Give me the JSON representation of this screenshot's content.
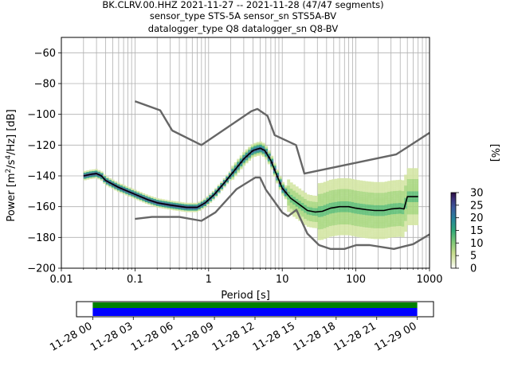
{
  "header": {
    "line1": "BK.CLRV.00.HHZ   2021-11-27 -- 2021-11-28  (47/47 segments)",
    "line2": "sensor_type STS-5A sensor_sn STS5A-BV",
    "line3": "datalogger_type Q8 datalogger_sn Q8-BV"
  },
  "chart_data": [
    {
      "type": "heatmap",
      "xlabel": "Period [s]",
      "ylabel": "Power [m²/s⁴/Hz] [dB]",
      "x_scale": "log",
      "xlim": [
        0.01,
        1000
      ],
      "ylim": [
        -200,
        -50
      ],
      "x_ticks": [
        "0.01",
        "0.1",
        "1",
        "10",
        "100",
        "1000"
      ],
      "x_tick_values": [
        0.01,
        0.1,
        1,
        10,
        100,
        1000
      ],
      "y_ticks": [
        -200,
        -180,
        -160,
        -140,
        -120,
        -100,
        -80,
        -60
      ],
      "grid": true,
      "colorbar": {
        "label": "[%]",
        "range": [
          0,
          30
        ],
        "ticks": [
          0,
          5,
          10,
          15,
          20,
          25,
          30
        ],
        "colormap": "pqlx"
      },
      "series": [
        {
          "name": "NHNM",
          "color": "#666666",
          "points": [
            [
              0.1,
              -91.5
            ],
            [
              0.22,
              -97.4
            ],
            [
              0.32,
              -110.5
            ],
            [
              0.8,
              -120
            ],
            [
              3.8,
              -98
            ],
            [
              4.6,
              -96.5
            ],
            [
              6.3,
              -101
            ],
            [
              7.9,
              -113.5
            ],
            [
              15.4,
              -120
            ],
            [
              20,
              -138.5
            ],
            [
              354.8,
              -126
            ],
            [
              1000,
              -112
            ]
          ]
        },
        {
          "name": "NLNM",
          "color": "#666666",
          "points": [
            [
              0.1,
              -168
            ],
            [
              0.17,
              -166.7
            ],
            [
              0.4,
              -166.7
            ],
            [
              0.8,
              -169.2
            ],
            [
              1.24,
              -163.7
            ],
            [
              2.4,
              -148.6
            ],
            [
              4.3,
              -141.1
            ],
            [
              5,
              -141.1
            ],
            [
              6,
              -149
            ],
            [
              10,
              -163.8
            ],
            [
              12,
              -166.2
            ],
            [
              15.6,
              -162.1
            ],
            [
              21.9,
              -177.5
            ],
            [
              31.6,
              -185
            ],
            [
              45,
              -187.5
            ],
            [
              70,
              -187.5
            ],
            [
              101,
              -185
            ],
            [
              154,
              -185
            ],
            [
              328,
              -187.5
            ],
            [
              600,
              -184.4
            ],
            [
              1000,
              -178
            ]
          ]
        },
        {
          "name": "mean",
          "color": "#000000",
          "points": [
            [
              0.02,
              -140
            ],
            [
              0.025,
              -139
            ],
            [
              0.03,
              -138.5
            ],
            [
              0.035,
              -140
            ],
            [
              0.04,
              -143
            ],
            [
              0.06,
              -147.5
            ],
            [
              0.1,
              -152
            ],
            [
              0.15,
              -155.5
            ],
            [
              0.2,
              -157.5
            ],
            [
              0.3,
              -159
            ],
            [
              0.5,
              -160.5
            ],
            [
              0.7,
              -160.5
            ],
            [
              0.9,
              -157.5
            ],
            [
              1.2,
              -152
            ],
            [
              1.6,
              -145
            ],
            [
              2.2,
              -137
            ],
            [
              3,
              -129
            ],
            [
              4,
              -123.5
            ],
            [
              5,
              -122
            ],
            [
              5.8,
              -123.5
            ],
            [
              7,
              -130
            ],
            [
              8.5,
              -140
            ],
            [
              10,
              -148
            ],
            [
              13,
              -154.5
            ],
            [
              17,
              -158.5
            ],
            [
              22,
              -162.5
            ],
            [
              28,
              -163.5
            ],
            [
              35,
              -163
            ],
            [
              45,
              -161
            ],
            [
              60,
              -160
            ],
            [
              80,
              -160
            ],
            [
              100,
              -161
            ],
            [
              140,
              -162
            ],
            [
              180,
              -162.5
            ],
            [
              240,
              -162.5
            ],
            [
              300,
              -161.5
            ],
            [
              400,
              -161
            ],
            [
              450,
              -161.5
            ],
            [
              500,
              -153.5
            ],
            [
              700,
              -153.5
            ]
          ]
        }
      ]
    },
    {
      "type": "timeline",
      "x_ticks": [
        "11-28 00",
        "11-28 03",
        "11-28 06",
        "11-28 09",
        "11-28 12",
        "11-28 15",
        "11-28 18",
        "11-28 21",
        "11-29 00"
      ],
      "x_tick_hours": [
        0,
        3,
        6,
        9,
        12,
        15,
        18,
        21,
        24
      ],
      "xlim_hours": [
        -1.2,
        25.2
      ],
      "data_coverage_hours": [
        0,
        24
      ],
      "bars": [
        {
          "name": "data",
          "color": "#008000"
        },
        {
          "name": "used",
          "color": "#0000ff"
        }
      ]
    }
  ]
}
